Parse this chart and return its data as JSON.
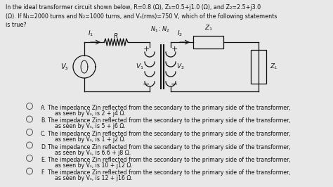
{
  "title_text": "In the ideal transformer circuit shown below, R=0.8 (Ω), Z₁=0.5+j1.0 (Ω), and Z₂=2.5+j3.0\n(Ω). If N₁=2000 turns and N₂=1000 turns, and Vₛ(rms)=750 V, which of the following statements\nis true?",
  "bg_color": "#e8e8e8",
  "text_color": "#111111",
  "title_font_size": 5.8,
  "option_font_size": 5.6,
  "circuit_color": "#111111",
  "option_labels": [
    "A.",
    "B.",
    "C.",
    "D.",
    "E.",
    "F."
  ],
  "option_values": [
    "2 + j4",
    "5 + j6",
    "1 + j2",
    "6.6 + j8",
    "10 + j12",
    "12 + j16"
  ],
  "option_base": "The impedance Zin reflected from the secondary to the primary side of the transformer,",
  "option_seen": "as seen by Vₛ, is "
}
